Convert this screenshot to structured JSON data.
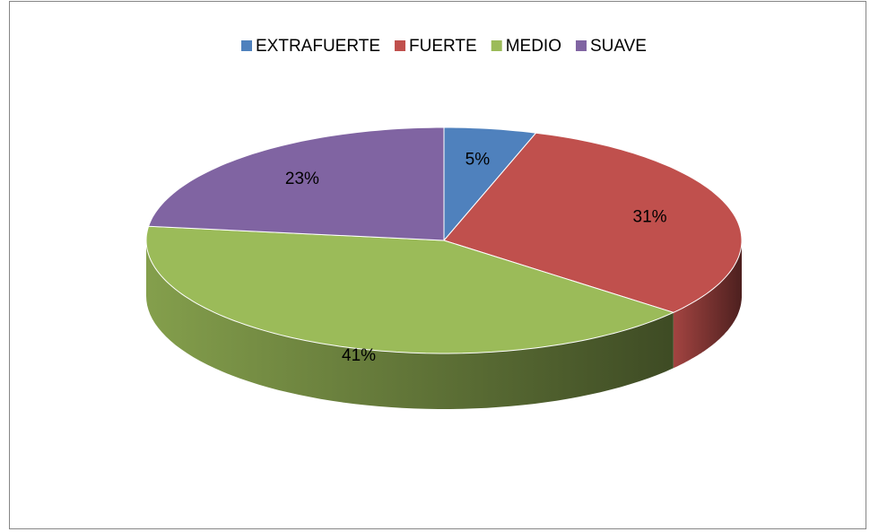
{
  "chart_data": {
    "type": "pie",
    "categories": [
      "EXTRAFUERTE",
      "FUERTE",
      "MEDIO",
      "SUAVE"
    ],
    "values": [
      5,
      31,
      41,
      23
    ],
    "value_labels": [
      "5%",
      "31%",
      "41%",
      "23%"
    ],
    "colors": [
      "#4f81bd",
      "#c0504d",
      "#9bbb59",
      "#8064a2"
    ],
    "legend": "top"
  }
}
